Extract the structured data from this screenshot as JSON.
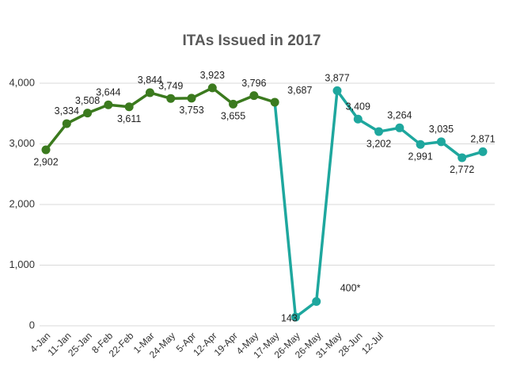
{
  "chart_data": {
    "type": "line",
    "title": "ITAs Issued in 2017",
    "categories": [
      "4-Jan",
      "11-Jan",
      "25-Jan",
      "8-Feb",
      "22-Feb",
      "1-Mar",
      "24-May",
      "5-Apr",
      "12-Apr",
      "19-Apr",
      "4-May",
      "17-May",
      "26-May",
      "26-May",
      "31-May",
      "28-Jun",
      "12-Jul",
      null,
      null,
      null,
      null,
      null
    ],
    "series": [
      {
        "color": "#3b7a1e",
        "values": [
          2902,
          3334,
          3508,
          3644,
          3611,
          3844,
          3749,
          3753,
          3923,
          3655,
          3796,
          3687,
          null,
          null,
          null,
          null,
          null,
          null,
          null,
          null,
          null,
          null
        ],
        "value_labels": [
          "2,902",
          "3,334",
          "3,508",
          "3,644",
          "3,611",
          "3,844",
          "3,749",
          "3,753",
          "3,923",
          "3,655",
          "3,796",
          "3,687",
          null,
          null,
          null,
          null,
          null,
          null,
          null,
          null,
          null,
          null
        ]
      },
      {
        "color": "#1ea79e",
        "values": [
          null,
          null,
          null,
          null,
          null,
          null,
          null,
          null,
          null,
          null,
          null,
          3687,
          143,
          400,
          3877,
          3409,
          3202,
          3264,
          2991,
          3035,
          2772,
          2871
        ],
        "value_labels": [
          null,
          null,
          null,
          null,
          null,
          null,
          null,
          null,
          null,
          null,
          null,
          null,
          "143",
          "400*",
          "3,877",
          "3,409",
          "3,202",
          "3,264",
          "2,991",
          "3,035",
          "2,772",
          "2,871"
        ]
      }
    ],
    "ylim": [
      0,
      4000
    ],
    "yticks": [
      0,
      {
        "value": 1000,
        "label": "1,000"
      },
      {
        "value": 2000,
        "label": "2,000"
      },
      {
        "value": 3000,
        "label": "3,000"
      },
      {
        "value": 4000,
        "label": "4,000"
      }
    ],
    "grid": true
  }
}
